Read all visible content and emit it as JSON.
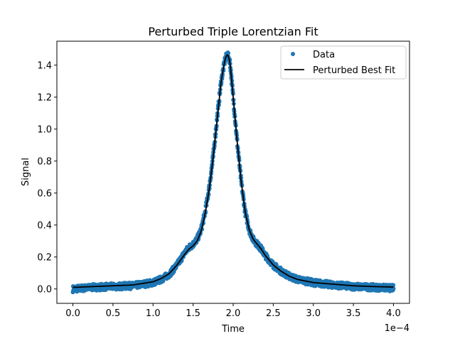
{
  "chart_data": {
    "type": "scatter",
    "title": "Perturbed Triple Lorentzian Fit",
    "xlabel": "Time",
    "ylabel": "Signal",
    "x_offset_text": "1e−4",
    "x_scale": 0.0001,
    "xlim": [
      -0.2,
      4.2
    ],
    "ylim": [
      -0.09,
      1.55
    ],
    "x_ticks": [
      0.0,
      0.5,
      1.0,
      1.5,
      2.0,
      2.5,
      3.0,
      3.5,
      4.0
    ],
    "y_ticks": [
      0.0,
      0.2,
      0.4,
      0.6,
      0.8,
      1.0,
      1.2,
      1.4
    ],
    "grid": false,
    "legend_position": "upper right",
    "series": [
      {
        "name": "Data",
        "kind": "points",
        "color": "#1f77b4",
        "x": [
          0.0,
          0.25,
          0.5,
          0.75,
          1.0,
          1.1,
          1.2,
          1.3,
          1.4,
          1.45,
          1.5,
          1.55,
          1.6,
          1.65,
          1.7,
          1.75,
          1.8,
          1.85,
          1.9,
          1.93,
          1.96,
          2.0,
          2.05,
          2.1,
          2.15,
          2.2,
          2.25,
          2.3,
          2.35,
          2.4,
          2.5,
          2.6,
          2.7,
          2.8,
          3.0,
          3.25,
          3.5,
          3.75,
          4.0
        ],
        "y": [
          0.0,
          0.01,
          0.015,
          0.02,
          0.04,
          0.06,
          0.09,
          0.15,
          0.23,
          0.26,
          0.28,
          0.31,
          0.37,
          0.48,
          0.63,
          0.83,
          1.07,
          1.3,
          1.44,
          1.47,
          1.42,
          1.2,
          0.92,
          0.67,
          0.48,
          0.37,
          0.31,
          0.28,
          0.25,
          0.21,
          0.15,
          0.11,
          0.08,
          0.06,
          0.04,
          0.025,
          0.015,
          0.01,
          0.005
        ],
        "noise_band": 0.02
      },
      {
        "name": "Perturbed Best Fit",
        "kind": "line",
        "color": "#000000",
        "x": [
          0.0,
          0.25,
          0.5,
          0.75,
          1.0,
          1.1,
          1.2,
          1.3,
          1.4,
          1.45,
          1.5,
          1.55,
          1.6,
          1.65,
          1.7,
          1.75,
          1.8,
          1.85,
          1.9,
          1.93,
          1.96,
          2.0,
          2.05,
          2.1,
          2.15,
          2.2,
          2.25,
          2.3,
          2.35,
          2.4,
          2.5,
          2.6,
          2.7,
          2.8,
          3.0,
          3.25,
          3.5,
          3.75,
          4.0
        ],
        "y": [
          0.01,
          0.015,
          0.02,
          0.025,
          0.045,
          0.065,
          0.095,
          0.15,
          0.22,
          0.25,
          0.27,
          0.3,
          0.36,
          0.47,
          0.62,
          0.82,
          1.06,
          1.3,
          1.44,
          1.47,
          1.42,
          1.2,
          0.92,
          0.67,
          0.48,
          0.37,
          0.31,
          0.28,
          0.25,
          0.21,
          0.15,
          0.11,
          0.08,
          0.06,
          0.04,
          0.03,
          0.02,
          0.015,
          0.012
        ]
      }
    ]
  }
}
